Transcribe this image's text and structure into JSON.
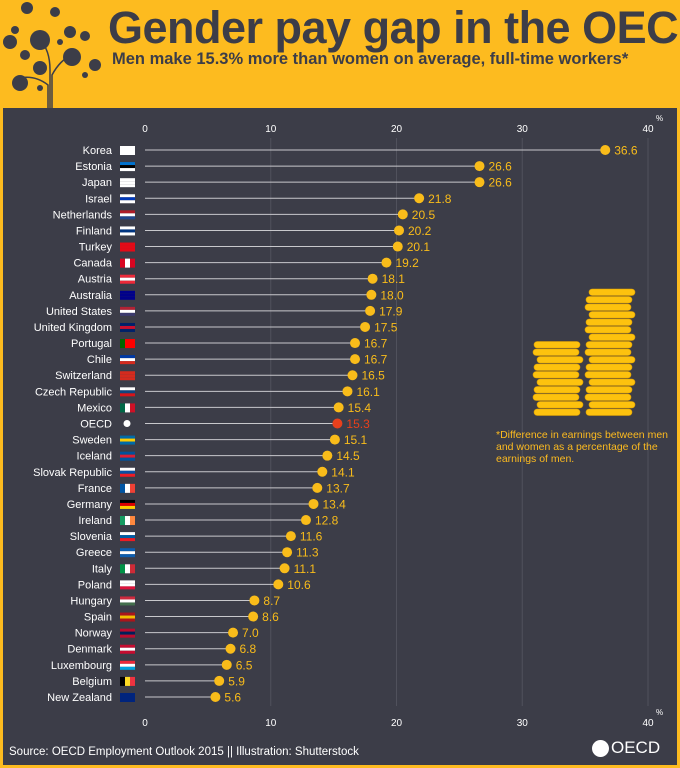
{
  "header": {
    "title": "Gender pay gap in the OECD",
    "subtitle": "Men make 15.3% more than women on average, full-time workers*",
    "illustration": "tree-of-icons"
  },
  "note": "*Difference in earnings between men and women as a percentage of the earnings of men.",
  "footer": {
    "source": "Source: OECD Employment Outlook 2015 || Illustration: Shutterstock",
    "logo_text": "OECD"
  },
  "colors": {
    "background": "#FDBB1F",
    "panel": "#3C3D48",
    "dot": "#F9BC1A",
    "highlight": "#E8401C",
    "label": "#FFFFFF",
    "grid": "#55566080"
  },
  "chart_data": {
    "type": "lollipop",
    "title": "Gender pay gap in the OECD",
    "subtitle": "Men make 15.3% more than women on average, full-time workers*",
    "xlim": [
      0,
      40
    ],
    "xticks": [
      0,
      10,
      20,
      30,
      40
    ],
    "xunit": "%",
    "grid": true,
    "highlight": "OECD",
    "categories": [
      "Korea",
      "Estonia",
      "Japan",
      "Israel",
      "Netherlands",
      "Finland",
      "Turkey",
      "Canada",
      "Austria",
      "Australia",
      "United States",
      "United Kingdom",
      "Portugal",
      "Chile",
      "Switzerland",
      "Czech Republic",
      "Mexico",
      "OECD",
      "Sweden",
      "Iceland",
      "Slovak Republic",
      "France",
      "Germany",
      "Ireland",
      "Slovenia",
      "Greece",
      "Italy",
      "Poland",
      "Hungary",
      "Spain",
      "Norway",
      "Denmark",
      "Luxembourg",
      "Belgium",
      "New Zealand"
    ],
    "values": [
      36.6,
      26.6,
      26.6,
      21.8,
      20.5,
      20.2,
      20.1,
      19.2,
      18.1,
      18.0,
      17.9,
      17.5,
      16.7,
      16.7,
      16.5,
      16.1,
      15.4,
      15.3,
      15.1,
      14.5,
      14.1,
      13.7,
      13.4,
      12.8,
      11.6,
      11.3,
      11.1,
      10.6,
      8.7,
      8.6,
      7.0,
      6.8,
      6.5,
      5.9,
      5.6
    ],
    "value_labels": [
      "36.6",
      "26.6",
      "26.6",
      "21.8",
      "20.5",
      "20.2",
      "20.1",
      "19.2",
      "18.1",
      "18.0",
      "17.9",
      "17.5",
      "16.7",
      "16.7",
      "16.5",
      "16.1",
      "15.4",
      "15.3",
      "15.1",
      "14.5",
      "14.1",
      "13.7",
      "13.4",
      "12.8",
      "11.6",
      "11.3",
      "11.1",
      "10.6",
      "8.7",
      "8.6",
      "7.0",
      "6.8",
      "6.5",
      "5.9",
      "5.6"
    ],
    "flags": [
      {
        "d": "h",
        "c": [
          "#fff",
          "#fff",
          "#fff"
        ]
      },
      {
        "d": "h",
        "c": [
          "#0072CE",
          "#000",
          "#fff"
        ]
      },
      {
        "d": "h",
        "c": [
          "#fff",
          "#fff",
          "#fff"
        ]
      },
      {
        "d": "h",
        "c": [
          "#fff",
          "#0038B8",
          "#fff"
        ]
      },
      {
        "d": "h",
        "c": [
          "#AE1C28",
          "#fff",
          "#21468B"
        ]
      },
      {
        "d": "h",
        "c": [
          "#fff",
          "#003580",
          "#fff"
        ]
      },
      {
        "d": "h",
        "c": [
          "#E30A17",
          "#E30A17",
          "#E30A17"
        ]
      },
      {
        "d": "v",
        "c": [
          "#D80621",
          "#fff",
          "#D80621"
        ]
      },
      {
        "d": "h",
        "c": [
          "#ED2939",
          "#fff",
          "#ED2939"
        ]
      },
      {
        "d": "h",
        "c": [
          "#00008B",
          "#00008B",
          "#00008B"
        ]
      },
      {
        "d": "h",
        "c": [
          "#B22234",
          "#fff",
          "#3C3B6E"
        ]
      },
      {
        "d": "h",
        "c": [
          "#012169",
          "#C8102E",
          "#012169"
        ]
      },
      {
        "d": "v",
        "c": [
          "#006600",
          "#FF0000",
          "#FF0000"
        ]
      },
      {
        "d": "h",
        "c": [
          "#0039A6",
          "#fff",
          "#D52B1E"
        ]
      },
      {
        "d": "h",
        "c": [
          "#D52B1E",
          "#D52B1E",
          "#D52B1E"
        ]
      },
      {
        "d": "h",
        "c": [
          "#fff",
          "#11457E",
          "#D7141A"
        ]
      },
      {
        "d": "v",
        "c": [
          "#006847",
          "#fff",
          "#CE1126"
        ]
      },
      {
        "d": "h",
        "c": [
          "#3C3D48",
          "#3C3D48",
          "#3C3D48"
        ]
      },
      {
        "d": "h",
        "c": [
          "#006AA7",
          "#FECC00",
          "#006AA7"
        ]
      },
      {
        "d": "h",
        "c": [
          "#02529C",
          "#DC1E35",
          "#02529C"
        ]
      },
      {
        "d": "h",
        "c": [
          "#fff",
          "#0B4EA2",
          "#EE1C25"
        ]
      },
      {
        "d": "v",
        "c": [
          "#0055A4",
          "#fff",
          "#EF4135"
        ]
      },
      {
        "d": "h",
        "c": [
          "#000",
          "#DD0000",
          "#FFCE00"
        ]
      },
      {
        "d": "v",
        "c": [
          "#169B62",
          "#fff",
          "#FF883E"
        ]
      },
      {
        "d": "h",
        "c": [
          "#fff",
          "#005DA4",
          "#ED1C24"
        ]
      },
      {
        "d": "h",
        "c": [
          "#0D5EAF",
          "#fff",
          "#0D5EAF"
        ]
      },
      {
        "d": "v",
        "c": [
          "#009246",
          "#fff",
          "#CE2B37"
        ]
      },
      {
        "d": "h",
        "c": [
          "#fff",
          "#fff",
          "#DC143C"
        ]
      },
      {
        "d": "h",
        "c": [
          "#CD2A3E",
          "#fff",
          "#436F4D"
        ]
      },
      {
        "d": "h",
        "c": [
          "#AA151B",
          "#F1BF00",
          "#AA151B"
        ]
      },
      {
        "d": "h",
        "c": [
          "#BA0C2F",
          "#00205B",
          "#BA0C2F"
        ]
      },
      {
        "d": "h",
        "c": [
          "#C60C30",
          "#fff",
          "#C60C30"
        ]
      },
      {
        "d": "h",
        "c": [
          "#ED2939",
          "#fff",
          "#00A1DE"
        ]
      },
      {
        "d": "v",
        "c": [
          "#000",
          "#FDDA24",
          "#EF3340"
        ]
      },
      {
        "d": "h",
        "c": [
          "#00247D",
          "#00247D",
          "#00247D"
        ]
      }
    ]
  }
}
